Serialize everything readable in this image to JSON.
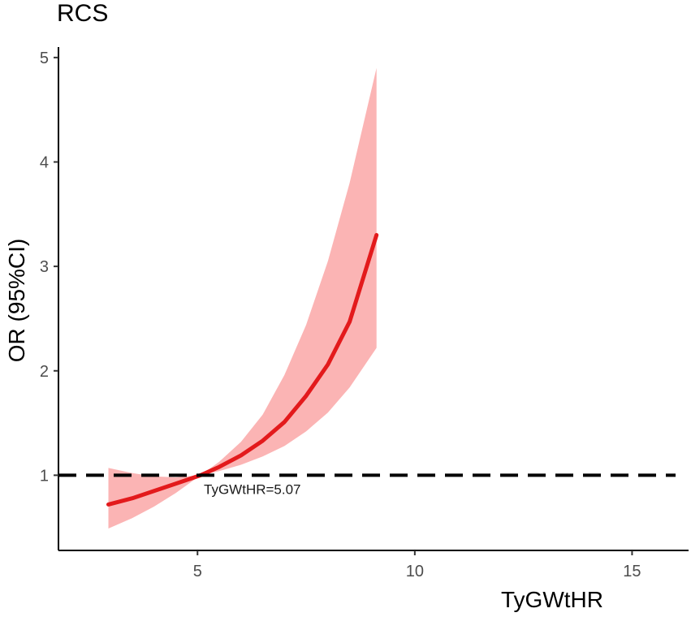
{
  "chart_data": {
    "type": "line",
    "title": "RCS",
    "xlabel": "TyGWtHR",
    "ylabel": "OR (95%CI)",
    "xlim": [
      1.8,
      16.3
    ],
    "ylim": [
      0.28,
      5.1
    ],
    "xticks": [
      5,
      10,
      15
    ],
    "yticks": [
      1,
      2,
      3,
      4,
      5
    ],
    "reference_line": {
      "y": 1,
      "style": "dashed"
    },
    "annotation": {
      "text": "TyGWtHR=5.07",
      "x": 5.07,
      "y": 1
    },
    "grid": false,
    "series": [
      {
        "line_color": "#e31a1c",
        "band_color": "#fbb4b4",
        "x": [
          2.95,
          3.5,
          4.0,
          4.5,
          5.07,
          5.5,
          6.0,
          6.5,
          7.0,
          7.5,
          8.0,
          8.5,
          9.12
        ],
        "y": [
          0.72,
          0.78,
          0.85,
          0.92,
          1.0,
          1.08,
          1.19,
          1.33,
          1.51,
          1.76,
          2.06,
          2.47,
          3.3
        ],
        "lower": [
          0.49,
          0.59,
          0.7,
          0.83,
          1.0,
          1.04,
          1.1,
          1.18,
          1.28,
          1.42,
          1.6,
          1.84,
          2.22
        ],
        "upper": [
          1.07,
          1.02,
          0.99,
          0.98,
          1.0,
          1.13,
          1.32,
          1.58,
          1.96,
          2.44,
          3.05,
          3.8,
          4.9
        ]
      }
    ]
  }
}
